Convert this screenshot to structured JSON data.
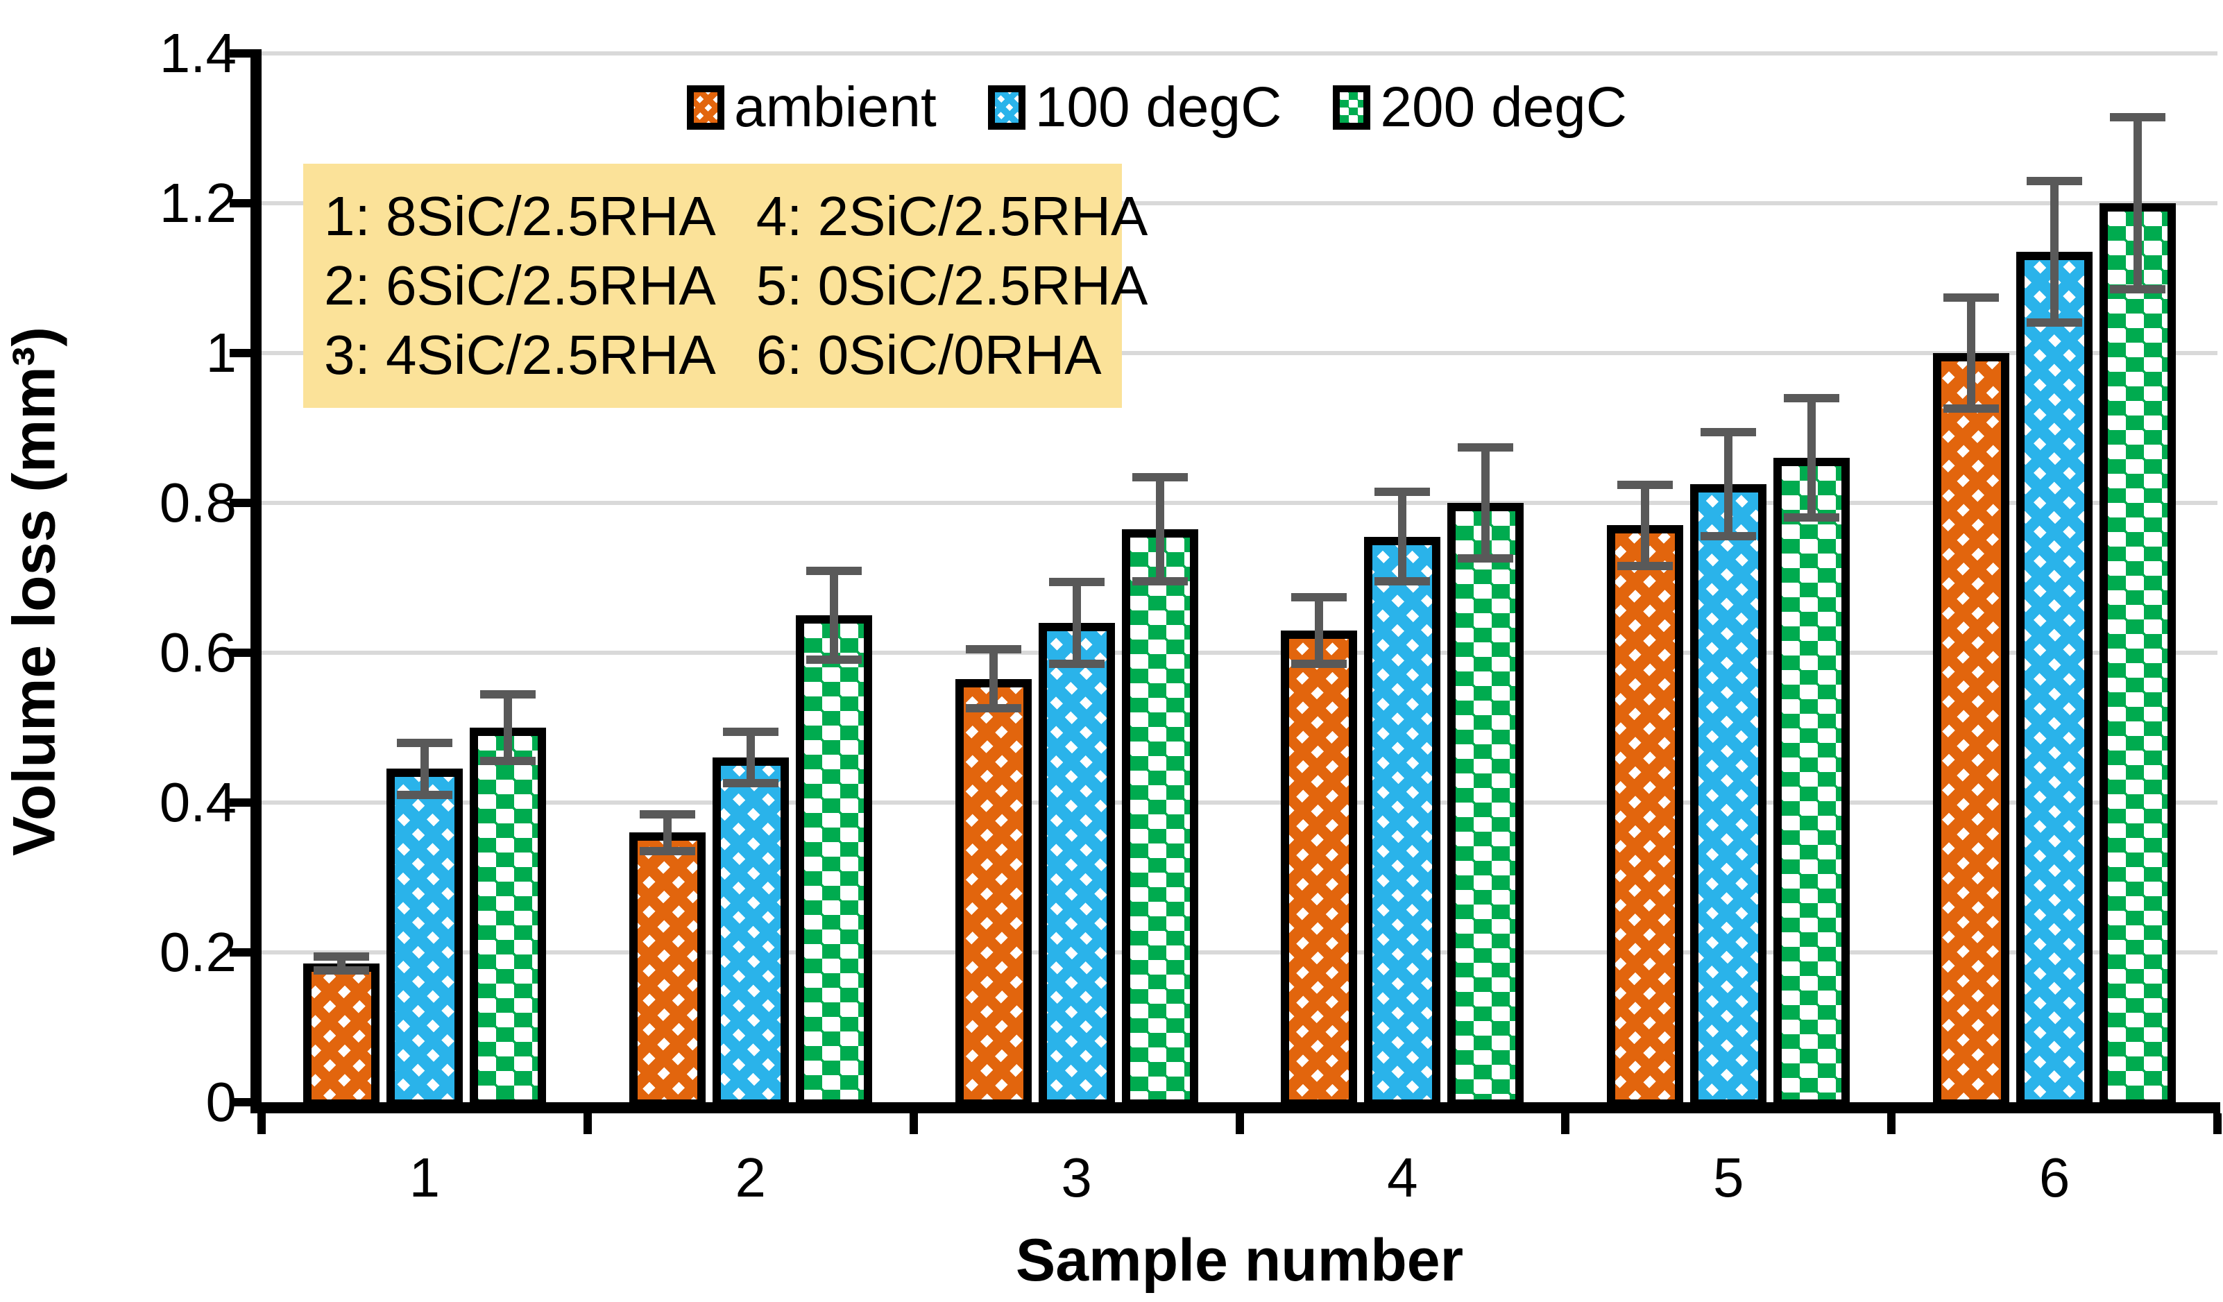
{
  "chart_data": {
    "type": "bar",
    "title": "",
    "xlabel": "Sample number",
    "ylabel": "Volume loss (mm³)",
    "ylim": [
      0,
      1.4
    ],
    "ytick_step": 0.2,
    "yticks": [
      "0",
      "0.2",
      "0.4",
      "0.6",
      "0.8",
      "1",
      "1.2",
      "1.4"
    ],
    "categories": [
      "1",
      "2",
      "3",
      "4",
      "5",
      "6"
    ],
    "series": [
      {
        "name": "ambient",
        "pattern": "diagonal-down",
        "color": "#E2650D",
        "values": [
          0.185,
          0.36,
          0.565,
          0.63,
          0.77,
          1.0
        ],
        "errors": [
          0.015,
          0.03,
          0.045,
          0.05,
          0.06,
          0.08
        ]
      },
      {
        "name": "100 degC",
        "pattern": "diagonal-up",
        "color": "#2AB3EA",
        "values": [
          0.445,
          0.46,
          0.64,
          0.755,
          0.825,
          1.135
        ],
        "errors": [
          0.04,
          0.04,
          0.06,
          0.065,
          0.075,
          0.1
        ]
      },
      {
        "name": "200 degC",
        "pattern": "checker",
        "color": "#00AB4F",
        "values": [
          0.5,
          0.65,
          0.765,
          0.8,
          0.86,
          1.2
        ],
        "errors": [
          0.05,
          0.065,
          0.075,
          0.08,
          0.085,
          0.12
        ]
      }
    ],
    "legend_position": "top-center",
    "grid": true,
    "gridline_color": "#D9D9D9",
    "error_bar_color": "#595959"
  },
  "annotation": {
    "bg": "#FBE299",
    "columns": [
      [
        "1: 8SiC/2.5RHA",
        "2: 6SiC/2.5RHA",
        "3: 4SiC/2.5RHA"
      ],
      [
        "4: 2SiC/2.5RHA",
        "5: 0SiC/2.5RHA",
        "6: 0SiC/0RHA"
      ]
    ]
  }
}
